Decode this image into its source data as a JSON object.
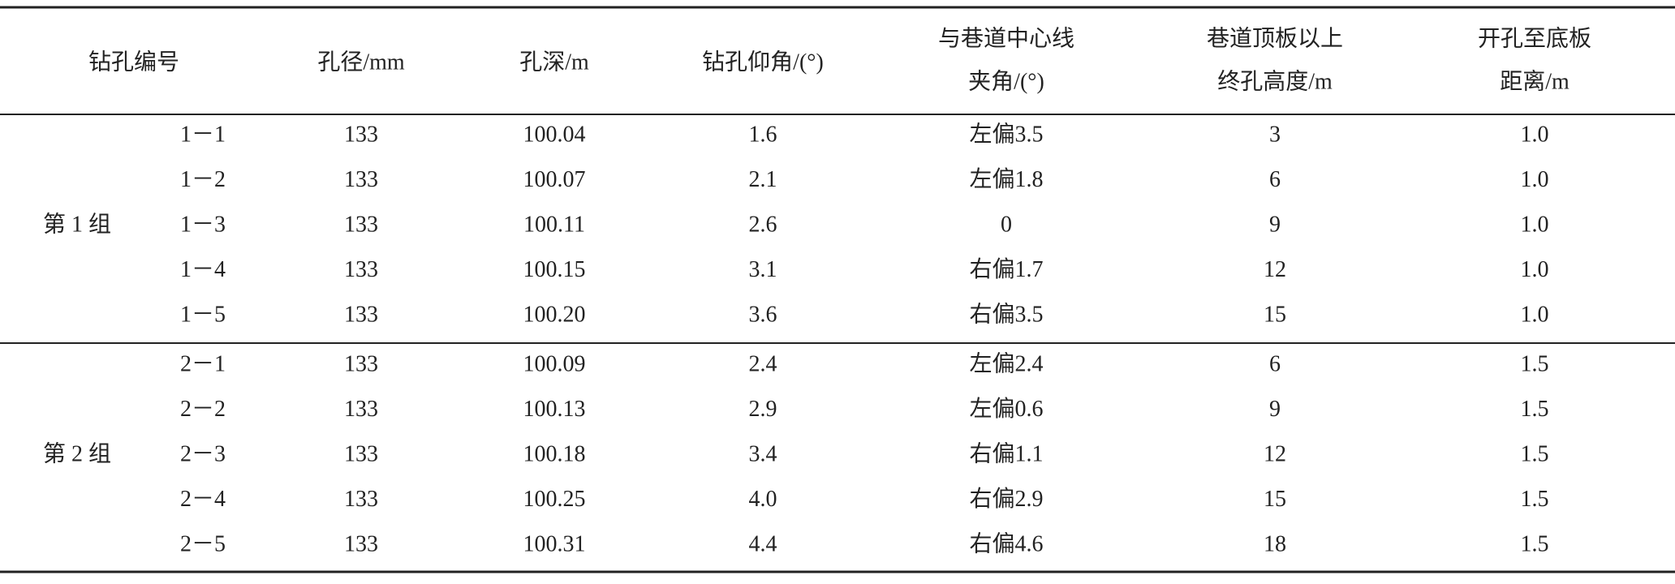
{
  "table": {
    "header": [
      [
        "钻孔编号"
      ],
      [
        "孔径/mm"
      ],
      [
        "孔深/m"
      ],
      [
        "钻孔仰角/(°)"
      ],
      [
        "与巷道中心线",
        "夹角/(°)"
      ],
      [
        "巷道顶板以上",
        "终孔高度/m"
      ],
      [
        "开孔至底板",
        "距离/m"
      ]
    ],
    "groups": [
      {
        "label": "第 1 组",
        "rows": [
          [
            "1－1",
            "133",
            "100.04",
            "1.6",
            "左偏3.5",
            "3",
            "1.0"
          ],
          [
            "1－2",
            "133",
            "100.07",
            "2.1",
            "左偏1.8",
            "6",
            "1.0"
          ],
          [
            "1－3",
            "133",
            "100.11",
            "2.6",
            "0",
            "9",
            "1.0"
          ],
          [
            "1－4",
            "133",
            "100.15",
            "3.1",
            "右偏1.7",
            "12",
            "1.0"
          ],
          [
            "1－5",
            "133",
            "100.20",
            "3.6",
            "右偏3.5",
            "15",
            "1.0"
          ]
        ]
      },
      {
        "label": "第 2 组",
        "rows": [
          [
            "2－1",
            "133",
            "100.09",
            "2.4",
            "左偏2.4",
            "6",
            "1.5"
          ],
          [
            "2－2",
            "133",
            "100.13",
            "2.9",
            "左偏0.6",
            "9",
            "1.5"
          ],
          [
            "2－3",
            "133",
            "100.18",
            "3.4",
            "右偏1.1",
            "12",
            "1.5"
          ],
          [
            "2－4",
            "133",
            "100.25",
            "4.0",
            "右偏2.9",
            "15",
            "1.5"
          ],
          [
            "2－5",
            "133",
            "100.31",
            "4.4",
            "右偏4.6",
            "18",
            "1.5"
          ]
        ]
      }
    ]
  }
}
